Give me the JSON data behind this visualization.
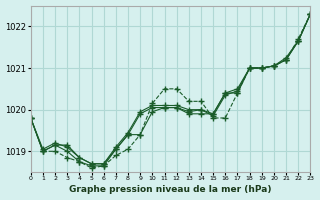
{
  "title": "Graphe pression niveau de la mer (hPa)",
  "bg_color": "#d6f0ee",
  "grid_color": "#b0d8d4",
  "line_color": "#1a5c2a",
  "x_min": 0,
  "x_max": 23,
  "y_min": 1018.5,
  "y_max": 1022.5,
  "yticks": [
    1019,
    1020,
    1021,
    1022
  ],
  "xticks": [
    0,
    1,
    2,
    3,
    4,
    5,
    6,
    7,
    8,
    9,
    10,
    11,
    12,
    13,
    14,
    15,
    16,
    17,
    18,
    19,
    20,
    21,
    22,
    23
  ],
  "series": [
    [
      1019.8,
      1019.0,
      1019.0,
      1018.85,
      1018.75,
      1018.6,
      1018.65,
      1018.9,
      1019.05,
      1019.4,
      1020.15,
      1020.5,
      1020.5,
      1020.2,
      1020.2,
      1019.8,
      1019.8,
      1020.4,
      1021.0,
      1021.0,
      1021.05,
      1021.2,
      1021.7,
      1022.3
    ],
    [
      1019.8,
      1019.0,
      1019.15,
      1019.15,
      1018.85,
      1018.7,
      1018.7,
      1019.05,
      1019.4,
      1019.4,
      1019.95,
      1020.05,
      1020.05,
      1019.9,
      1019.9,
      1019.9,
      1020.4,
      1020.5,
      1021.0,
      1021.0,
      1021.05,
      1021.2,
      1021.65,
      1022.3
    ],
    [
      1019.8,
      1019.0,
      1019.15,
      1019.0,
      1018.75,
      1018.65,
      1018.65,
      1019.05,
      1019.4,
      1019.9,
      1020.05,
      1020.05,
      1020.05,
      1019.95,
      1020.0,
      1019.9,
      1020.4,
      1020.4,
      1021.0,
      1021.0,
      1021.05,
      1021.2,
      1021.65,
      1022.3
    ],
    [
      1019.8,
      1019.05,
      1019.2,
      1019.1,
      1018.85,
      1018.7,
      1018.7,
      1019.1,
      1019.45,
      1019.95,
      1020.1,
      1020.1,
      1020.1,
      1020.0,
      1020.0,
      1019.85,
      1020.35,
      1020.45,
      1021.0,
      1021.0,
      1021.05,
      1021.25,
      1021.65,
      1022.3
    ]
  ],
  "linestyles": [
    "--",
    "-",
    "-",
    "-"
  ]
}
